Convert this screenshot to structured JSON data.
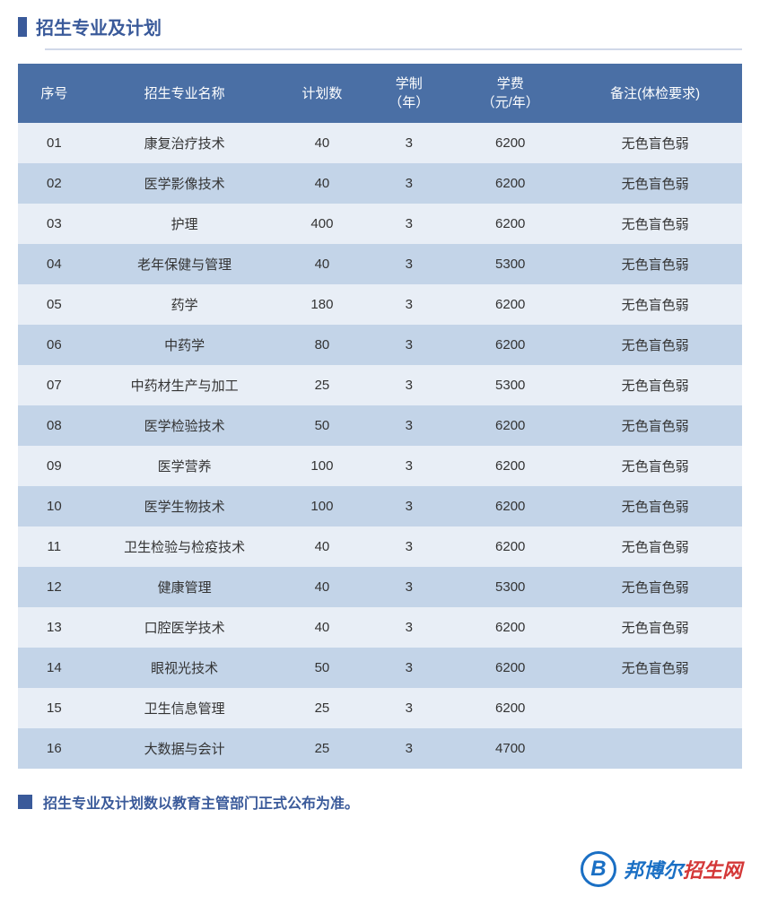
{
  "section": {
    "title": "招生专业及计划"
  },
  "table": {
    "type": "table",
    "header_bg": "#4a6fa5",
    "header_color": "#ffffff",
    "row_odd_bg": "#e8eef6",
    "row_even_bg": "#c3d4e8",
    "text_color": "#333333",
    "columns": [
      {
        "key": "seq",
        "label": "序号",
        "width": "10%"
      },
      {
        "key": "major",
        "label": "招生专业名称",
        "width": "26%"
      },
      {
        "key": "plan",
        "label": "计划数",
        "width": "12%"
      },
      {
        "key": "years",
        "label": "学制\n（年）",
        "width": "12%"
      },
      {
        "key": "fee",
        "label": "学费\n（元/年）",
        "width": "16%"
      },
      {
        "key": "note",
        "label": "备注(体检要求)",
        "width": "24%"
      }
    ],
    "rows": [
      {
        "seq": "01",
        "major": "康复治疗技术",
        "plan": "40",
        "years": "3",
        "fee": "6200",
        "note": "无色盲色弱"
      },
      {
        "seq": "02",
        "major": "医学影像技术",
        "plan": "40",
        "years": "3",
        "fee": "6200",
        "note": "无色盲色弱"
      },
      {
        "seq": "03",
        "major": "护理",
        "plan": "400",
        "years": "3",
        "fee": "6200",
        "note": "无色盲色弱"
      },
      {
        "seq": "04",
        "major": "老年保健与管理",
        "plan": "40",
        "years": "3",
        "fee": "5300",
        "note": "无色盲色弱"
      },
      {
        "seq": "05",
        "major": "药学",
        "plan": "180",
        "years": "3",
        "fee": "6200",
        "note": "无色盲色弱"
      },
      {
        "seq": "06",
        "major": "中药学",
        "plan": "80",
        "years": "3",
        "fee": "6200",
        "note": "无色盲色弱"
      },
      {
        "seq": "07",
        "major": "中药材生产与加工",
        "plan": "25",
        "years": "3",
        "fee": "5300",
        "note": "无色盲色弱"
      },
      {
        "seq": "08",
        "major": "医学检验技术",
        "plan": "50",
        "years": "3",
        "fee": "6200",
        "note": "无色盲色弱"
      },
      {
        "seq": "09",
        "major": "医学营养",
        "plan": "100",
        "years": "3",
        "fee": "6200",
        "note": "无色盲色弱"
      },
      {
        "seq": "10",
        "major": "医学生物技术",
        "plan": "100",
        "years": "3",
        "fee": "6200",
        "note": "无色盲色弱"
      },
      {
        "seq": "11",
        "major": "卫生检验与检疫技术",
        "plan": "40",
        "years": "3",
        "fee": "6200",
        "note": "无色盲色弱"
      },
      {
        "seq": "12",
        "major": "健康管理",
        "plan": "40",
        "years": "3",
        "fee": "5300",
        "note": "无色盲色弱"
      },
      {
        "seq": "13",
        "major": "口腔医学技术",
        "plan": "40",
        "years": "3",
        "fee": "6200",
        "note": "无色盲色弱"
      },
      {
        "seq": "14",
        "major": "眼视光技术",
        "plan": "50",
        "years": "3",
        "fee": "6200",
        "note": "无色盲色弱"
      },
      {
        "seq": "15",
        "major": "卫生信息管理",
        "plan": "25",
        "years": "3",
        "fee": "6200",
        "note": ""
      },
      {
        "seq": "16",
        "major": "大数据与会计",
        "plan": "25",
        "years": "3",
        "fee": "4700",
        "note": ""
      }
    ]
  },
  "footer": {
    "note": "招生专业及计划数以教育主管部门正式公布为准。"
  },
  "watermark": {
    "letter": "B",
    "text_blue": "邦博尔",
    "text_red": "招生网"
  },
  "colors": {
    "primary": "#3a5a9a",
    "table_header_bg": "#4a6fa5",
    "row_light": "#e8eef6",
    "row_dark": "#c3d4e8",
    "watermark_blue": "#1a6fc4",
    "watermark_red": "#d43838"
  }
}
